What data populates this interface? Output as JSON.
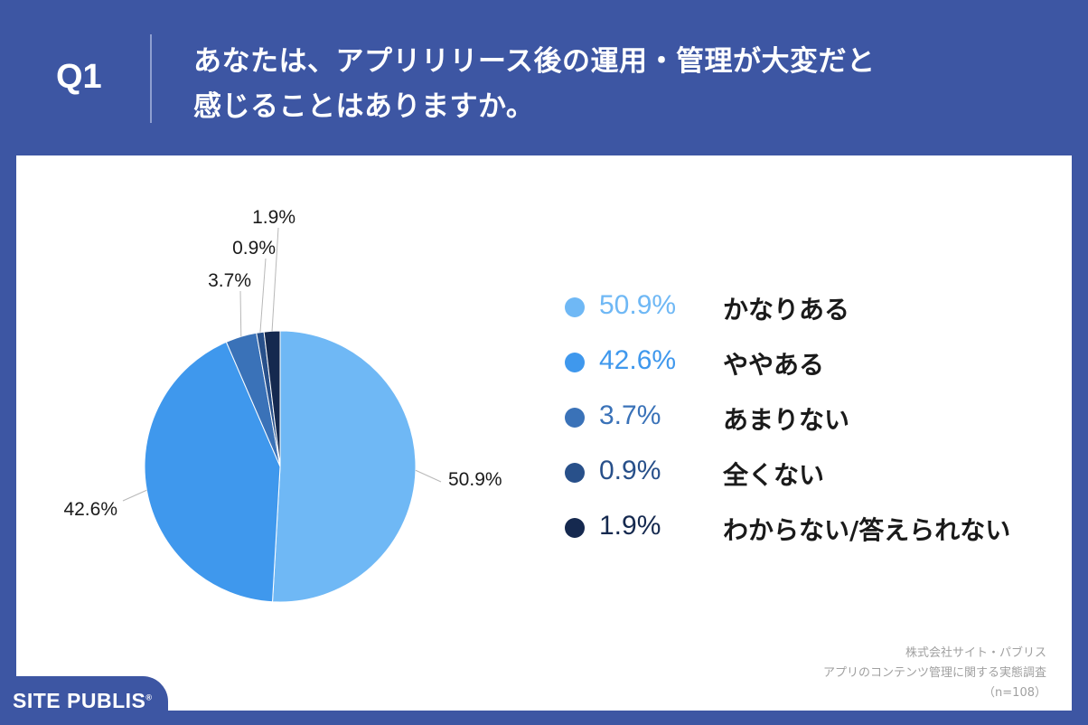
{
  "header": {
    "q_label": "Q1",
    "question_line1": "あなたは、アプリリリース後の運用・管理が大変だと",
    "question_line2": "感じることはありますか。"
  },
  "chart_data": {
    "type": "pie",
    "title": "",
    "slices": [
      {
        "label": "かなりある",
        "value": 50.9,
        "display": "50.9%",
        "color": "#6fb8f5"
      },
      {
        "label": "ややある",
        "value": 42.6,
        "display": "42.6%",
        "color": "#3f98ed"
      },
      {
        "label": "あまりない",
        "value": 3.7,
        "display": "3.7%",
        "color": "#3a72b8"
      },
      {
        "label": "全くない",
        "value": 0.9,
        "display": "0.9%",
        "color": "#28508a"
      },
      {
        "label": "わからない/答えられない",
        "value": 1.9,
        "display": "1.9%",
        "color": "#15294f"
      }
    ],
    "legend_position": "right"
  },
  "credits": {
    "line1": "株式会社サイト・パブリス",
    "line2": "アプリのコンテンツ管理に関する実態調査",
    "line3": "（n=108）"
  },
  "brand": {
    "logo_text": "SITE PUBLIS",
    "registered_mark": "®"
  },
  "colors": {
    "background": "#3d56a3",
    "panel": "#ffffff"
  }
}
